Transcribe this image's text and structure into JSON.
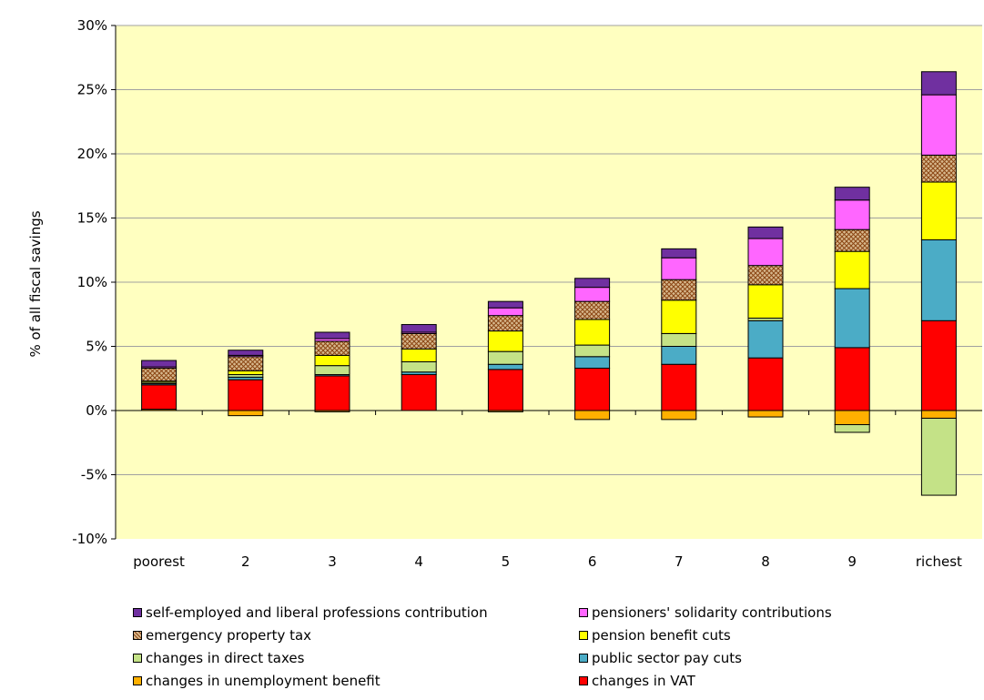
{
  "chart_data": {
    "type": "bar",
    "stacked": true,
    "ylabel": "% of all fiscal savings",
    "xlabel": "",
    "ylim": [
      -10,
      30
    ],
    "yticks": [
      "-10%",
      "-5%",
      "0%",
      "5%",
      "10%",
      "15%",
      "20%",
      "25%",
      "30%"
    ],
    "grid": true,
    "legend_position": "bottom",
    "plot_background": "#FFFFC0",
    "categories": [
      "poorest",
      "2",
      "3",
      "4",
      "5",
      "6",
      "7",
      "8",
      "9",
      "richest"
    ],
    "series": [
      {
        "name": "changes in unemployment benefit",
        "color": "#FFB000",
        "pattern": false,
        "values": [
          0.1,
          -0.4,
          -0.1,
          0.0,
          -0.1,
          -0.7,
          -0.7,
          -0.5,
          -1.1,
          -0.6
        ]
      },
      {
        "name": "changes in VAT",
        "color": "#FF0000",
        "pattern": false,
        "values": [
          1.9,
          2.4,
          2.7,
          2.8,
          3.2,
          3.3,
          3.6,
          4.1,
          4.9,
          7.0
        ]
      },
      {
        "name": "public sector pay cuts",
        "color": "#4BACC6",
        "pattern": false,
        "values": [
          0.1,
          0.2,
          0.1,
          0.2,
          0.4,
          0.9,
          1.4,
          2.9,
          4.6,
          6.3
        ]
      },
      {
        "name": "changes in direct taxes",
        "color": "#C4E287",
        "pattern": false,
        "values": [
          0.1,
          0.2,
          0.7,
          0.8,
          1.0,
          0.9,
          1.0,
          0.2,
          -0.6,
          -6.0
        ]
      },
      {
        "name": "pension benefit cuts",
        "color": "#FFFF00",
        "pattern": false,
        "values": [
          0.1,
          0.3,
          0.8,
          1.0,
          1.6,
          2.0,
          2.6,
          2.6,
          2.9,
          4.5
        ]
      },
      {
        "name": "emergency property tax",
        "color": "#D8B98E",
        "pattern": true,
        "values": [
          1.0,
          1.1,
          1.1,
          1.2,
          1.2,
          1.4,
          1.6,
          1.5,
          1.7,
          2.1
        ]
      },
      {
        "name": "pensioners' solidarity contributions",
        "color": "#FF66FF",
        "pattern": false,
        "values": [
          0.1,
          0.1,
          0.2,
          0.1,
          0.6,
          1.1,
          1.7,
          2.1,
          2.3,
          4.7
        ]
      },
      {
        "name": "self-employed and liberal professions contribution",
        "color": "#7030A0",
        "pattern": false,
        "values": [
          0.5,
          0.4,
          0.5,
          0.6,
          0.5,
          0.7,
          0.7,
          0.9,
          1.0,
          1.8
        ]
      }
    ]
  },
  "legend": {
    "items": [
      {
        "label": "self-employed and liberal professions contribution",
        "color": "#7030A0",
        "pattern": false
      },
      {
        "label": "pensioners' solidarity contributions",
        "color": "#FF66FF",
        "pattern": false
      },
      {
        "label": "emergency property tax",
        "color": "#D8B98E",
        "pattern": true
      },
      {
        "label": "pension benefit cuts",
        "color": "#FFFF00",
        "pattern": false
      },
      {
        "label": "changes in direct taxes",
        "color": "#C4E287",
        "pattern": false
      },
      {
        "label": "public sector pay cuts",
        "color": "#4BACC6",
        "pattern": false
      },
      {
        "label": "changes in unemployment benefit",
        "color": "#FFB000",
        "pattern": false
      },
      {
        "label": "changes in VAT",
        "color": "#FF0000",
        "pattern": false
      }
    ]
  }
}
